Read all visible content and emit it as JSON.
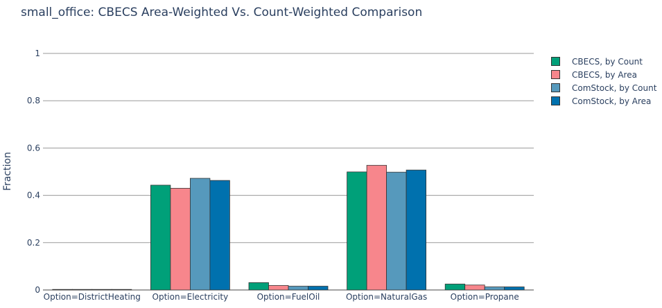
{
  "chart_data": {
    "type": "bar",
    "title": "small_office: CBECS Area-Weighted Vs. Count-Weighted Comparison",
    "xlabel": "",
    "ylabel": "Fraction",
    "ylim": [
      0,
      1
    ],
    "yticks": [
      "0",
      "0.2",
      "0.4",
      "0.6",
      "0.8",
      "1"
    ],
    "ytick_values": [
      0,
      0.2,
      0.4,
      0.6,
      0.8,
      1
    ],
    "grid": true,
    "legend_position": "right",
    "categories": [
      "Option=DistrictHeating",
      "Option=Electricity",
      "Option=FuelOil",
      "Option=NaturalGas",
      "Option=Propane"
    ],
    "series": [
      {
        "name": "CBECS, by Count",
        "color": "#00a079",
        "values": [
          0.0,
          0.443,
          0.031,
          0.499,
          0.025
        ]
      },
      {
        "name": "CBECS, by Area",
        "color": "#f7868c",
        "values": [
          0.002,
          0.43,
          0.019,
          0.527,
          0.021
        ]
      },
      {
        "name": "ComStock, by Count",
        "color": "#5699bc",
        "values": [
          0.0,
          0.472,
          0.016,
          0.498,
          0.013
        ]
      },
      {
        "name": "ComStock, by Area",
        "color": "#0071ae",
        "values": [
          0.0,
          0.463,
          0.016,
          0.507,
          0.013
        ]
      }
    ]
  }
}
